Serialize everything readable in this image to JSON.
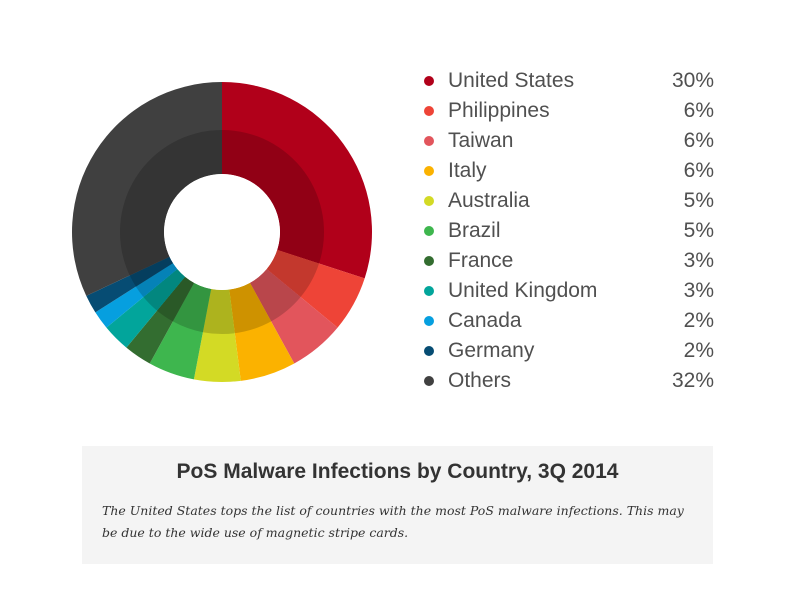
{
  "chart_data": {
    "type": "pie",
    "categories": [
      "United States",
      "Philippines",
      "Taiwan",
      "Italy",
      "Australia",
      "Brazil",
      "France",
      "United Kingdom",
      "Canada",
      "Germany",
      "Others"
    ],
    "values": [
      30,
      6,
      6,
      6,
      5,
      5,
      3,
      3,
      2,
      2,
      32
    ],
    "value_labels": [
      "30%",
      "6%",
      "6%",
      "6%",
      "5%",
      "5%",
      "3%",
      "3%",
      "2%",
      "2%",
      "32%"
    ],
    "colors": [
      "#b1001a",
      "#ee4437",
      "#e2555c",
      "#fbb200",
      "#d3da25",
      "#3eb64e",
      "#336d30",
      "#02a59b",
      "#069fdf",
      "#064c73",
      "#404040"
    ],
    "legend_position": "right",
    "title": "PoS Malware Infections by Country, 3Q 2014"
  },
  "caption": {
    "title": "PoS Malware Infections by Country, 3Q 2014",
    "text": "The United States tops the list of countries with the most PoS malware infections. This may be due to the wide use of magnetic stripe cards."
  }
}
